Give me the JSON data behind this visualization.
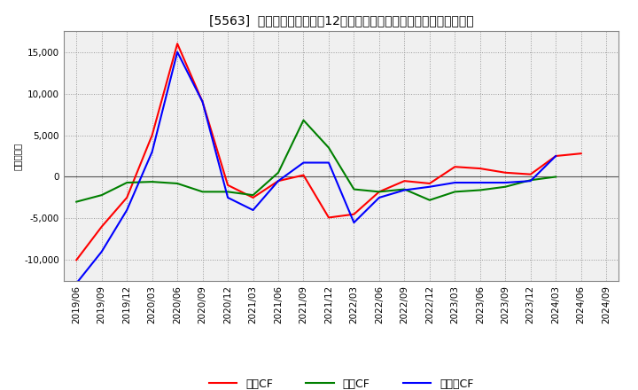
{
  "title": "[5563]  キャッシュフローの12か月移動合計の対前年同期増減額の推移",
  "ylabel": "（百万円）",
  "x_labels": [
    "2019/06",
    "2019/09",
    "2019/12",
    "2020/03",
    "2020/06",
    "2020/09",
    "2020/12",
    "2021/03",
    "2021/06",
    "2021/09",
    "2021/12",
    "2022/03",
    "2022/06",
    "2022/09",
    "2022/12",
    "2023/03",
    "2023/06",
    "2023/09",
    "2023/12",
    "2024/03",
    "2024/06",
    "2024/09"
  ],
  "eigyo_cf": [
    -10000,
    -6000,
    -2500,
    5000,
    16000,
    9000,
    -1000,
    -2500,
    -500,
    200,
    -4900,
    -4500,
    -1800,
    -500,
    -800,
    1200,
    1000,
    500,
    300,
    2500,
    2800,
    null
  ],
  "toshi_cf": [
    -3000,
    -2200,
    -700,
    -600,
    -800,
    -1800,
    -1800,
    -2200,
    500,
    6800,
    3500,
    -1500,
    -1800,
    -1500,
    -2800,
    -1800,
    -1600,
    -1200,
    -400,
    0,
    null,
    null
  ],
  "free_cf": [
    -12800,
    -9000,
    -4000,
    3000,
    15000,
    9000,
    -2500,
    -4000,
    -500,
    1700,
    1700,
    -5500,
    -2500,
    -1600,
    -1200,
    -700,
    -700,
    -700,
    -500,
    2500,
    null,
    null
  ],
  "ylim": [
    -12500,
    17500
  ],
  "yticks": [
    -10000,
    -5000,
    0,
    5000,
    10000,
    15000
  ],
  "line_colors": {
    "eigyo": "#ff0000",
    "toshi": "#008000",
    "free": "#0000ff"
  },
  "legend_labels": [
    "営業CF",
    "投資CF",
    "フリーCF"
  ],
  "bg_color": "#ffffff",
  "plot_bg_color": "#f0f0f0",
  "grid_color": "#999999",
  "title_fontsize": 10,
  "axis_fontsize": 7.5
}
